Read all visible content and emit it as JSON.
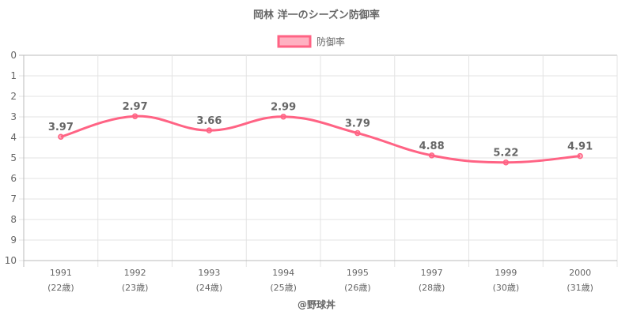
{
  "chart_data": {
    "type": "line",
    "title": "岡林 洋一のシーズン防御率",
    "legend": {
      "label": "防御率",
      "position": "top"
    },
    "categories": [
      "1991",
      "1992",
      "1993",
      "1994",
      "1995",
      "1997",
      "1999",
      "2000"
    ],
    "sublabels": [
      "(22歳)",
      "(23歳)",
      "(24歳)",
      "(25歳)",
      "(26歳)",
      "(28歳)",
      "(30歳)",
      "(31歳)"
    ],
    "series": [
      {
        "name": "防御率",
        "values": [
          3.97,
          2.97,
          3.66,
          2.99,
          3.79,
          4.88,
          5.22,
          4.91
        ]
      }
    ],
    "data_labels": [
      "3.97",
      "2.97",
      "3.66",
      "2.99",
      "3.79",
      "4.88",
      "5.22",
      "4.91"
    ],
    "ylim": [
      0,
      10
    ],
    "y_reversed": true,
    "yticks": [
      "0",
      "1",
      "2",
      "3",
      "4",
      "5",
      "6",
      "7",
      "8",
      "9",
      "10"
    ],
    "grid": true,
    "color": "#ff6384",
    "credit": "@野球丼"
  }
}
